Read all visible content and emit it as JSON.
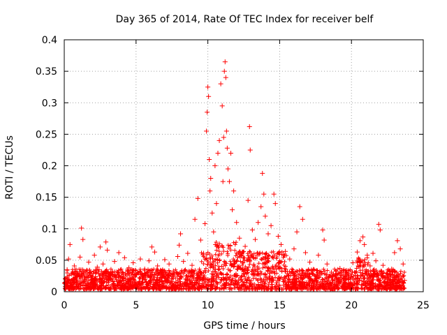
{
  "chart_data": {
    "type": "scatter",
    "title": "Day 365 of 2014, Rate Of TEC Index for receiver belf",
    "xlabel": "GPS time / hours",
    "ylabel": "ROTI / TECUs",
    "xlim": [
      0,
      25
    ],
    "ylim": [
      0,
      0.4
    ],
    "xticks": [
      0,
      5,
      10,
      15,
      20,
      25
    ],
    "yticks": [
      0,
      0.05,
      0.1,
      0.15,
      0.2,
      0.25,
      0.3,
      0.35,
      0.4
    ],
    "xtick_labels": [
      "0",
      "5",
      "10",
      "15",
      "20",
      "25"
    ],
    "ytick_labels": [
      "0",
      "0.05",
      "0.1",
      "0.15",
      "0.2",
      "0.25",
      "0.3",
      "0.35",
      "0.4"
    ],
    "grid": true,
    "marker": "+",
    "series": [
      {
        "name": "ROTI",
        "color": "#ff0000",
        "points": [
          [
            0.1,
            0.012
          ],
          [
            0.2,
            0.035
          ],
          [
            0.3,
            0.052
          ],
          [
            0.4,
            0.075
          ],
          [
            0.5,
            0.028
          ],
          [
            0.7,
            0.041
          ],
          [
            0.9,
            0.018
          ],
          [
            1.1,
            0.055
          ],
          [
            1.2,
            0.101
          ],
          [
            1.3,
            0.083
          ],
          [
            1.5,
            0.032
          ],
          [
            1.7,
            0.047
          ],
          [
            1.9,
            0.022
          ],
          [
            2.1,
            0.058
          ],
          [
            2.3,
            0.039
          ],
          [
            2.5,
            0.071
          ],
          [
            2.7,
            0.044
          ],
          [
            2.9,
            0.079
          ],
          [
            3.0,
            0.066
          ],
          [
            3.2,
            0.025
          ],
          [
            3.5,
            0.048
          ],
          [
            3.8,
            0.062
          ],
          [
            4.0,
            0.031
          ],
          [
            4.2,
            0.054
          ],
          [
            4.5,
            0.038
          ],
          [
            4.8,
            0.046
          ],
          [
            5.0,
            0.027
          ],
          [
            5.3,
            0.052
          ],
          [
            5.6,
            0.036
          ],
          [
            5.9,
            0.049
          ],
          [
            6.1,
            0.071
          ],
          [
            6.3,
            0.063
          ],
          [
            6.5,
            0.041
          ],
          [
            6.8,
            0.029
          ],
          [
            7.0,
            0.051
          ],
          [
            7.3,
            0.044
          ],
          [
            7.6,
            0.033
          ],
          [
            7.9,
            0.056
          ],
          [
            8.0,
            0.074
          ],
          [
            8.1,
            0.092
          ],
          [
            8.3,
            0.048
          ],
          [
            8.6,
            0.061
          ],
          [
            8.9,
            0.042
          ],
          [
            9.1,
            0.115
          ],
          [
            9.3,
            0.148
          ],
          [
            9.5,
            0.082
          ],
          [
            9.7,
            0.061
          ],
          [
            9.8,
            0.108
          ],
          [
            9.9,
            0.255
          ],
          [
            9.95,
            0.285
          ],
          [
            10.0,
            0.325
          ],
          [
            10.05,
            0.31
          ],
          [
            10.1,
            0.21
          ],
          [
            10.15,
            0.16
          ],
          [
            10.2,
            0.18
          ],
          [
            10.3,
            0.125
          ],
          [
            10.4,
            0.095
          ],
          [
            10.5,
            0.2
          ],
          [
            10.6,
            0.14
          ],
          [
            10.7,
            0.22
          ],
          [
            10.8,
            0.24
          ],
          [
            10.9,
            0.33
          ],
          [
            11.0,
            0.295
          ],
          [
            11.05,
            0.175
          ],
          [
            11.1,
            0.245
          ],
          [
            11.15,
            0.35
          ],
          [
            11.2,
            0.365
          ],
          [
            11.25,
            0.34
          ],
          [
            11.3,
            0.255
          ],
          [
            11.35,
            0.228
          ],
          [
            11.4,
            0.195
          ],
          [
            11.5,
            0.175
          ],
          [
            11.6,
            0.22
          ],
          [
            11.7,
            0.13
          ],
          [
            11.8,
            0.16
          ],
          [
            12.0,
            0.11
          ],
          [
            12.2,
            0.085
          ],
          [
            12.4,
            0.063
          ],
          [
            12.6,
            0.072
          ],
          [
            12.8,
            0.145
          ],
          [
            12.9,
            0.262
          ],
          [
            12.95,
            0.225
          ],
          [
            13.1,
            0.098
          ],
          [
            13.3,
            0.083
          ],
          [
            13.5,
            0.11
          ],
          [
            13.7,
            0.135
          ],
          [
            13.8,
            0.188
          ],
          [
            13.9,
            0.155
          ],
          [
            14.0,
            0.12
          ],
          [
            14.2,
            0.092
          ],
          [
            14.4,
            0.105
          ],
          [
            14.6,
            0.155
          ],
          [
            14.7,
            0.14
          ],
          [
            14.9,
            0.088
          ],
          [
            15.1,
            0.075
          ],
          [
            15.4,
            0.064
          ],
          [
            15.7,
            0.052
          ],
          [
            16.0,
            0.068
          ],
          [
            16.2,
            0.095
          ],
          [
            16.4,
            0.135
          ],
          [
            16.6,
            0.115
          ],
          [
            16.8,
            0.062
          ],
          [
            17.1,
            0.047
          ],
          [
            17.4,
            0.035
          ],
          [
            17.7,
            0.058
          ],
          [
            18.0,
            0.098
          ],
          [
            18.1,
            0.082
          ],
          [
            18.3,
            0.044
          ],
          [
            18.6,
            0.031
          ],
          [
            18.9,
            0.026
          ],
          [
            19.2,
            0.037
          ],
          [
            19.5,
            0.022
          ],
          [
            19.8,
            0.029
          ],
          [
            20.1,
            0.046
          ],
          [
            20.4,
            0.063
          ],
          [
            20.6,
            0.081
          ],
          [
            20.8,
            0.087
          ],
          [
            20.9,
            0.075
          ],
          [
            21.1,
            0.058
          ],
          [
            21.3,
            0.041
          ],
          [
            21.5,
            0.061
          ],
          [
            21.7,
            0.049
          ],
          [
            21.9,
            0.107
          ],
          [
            22.0,
            0.098
          ],
          [
            22.2,
            0.042
          ],
          [
            22.5,
            0.029
          ],
          [
            22.8,
            0.036
          ],
          [
            23.0,
            0.062
          ],
          [
            23.2,
            0.081
          ],
          [
            23.4,
            0.068
          ],
          [
            23.6,
            0.044
          ],
          [
            23.7,
            0.018
          ]
        ]
      }
    ]
  }
}
